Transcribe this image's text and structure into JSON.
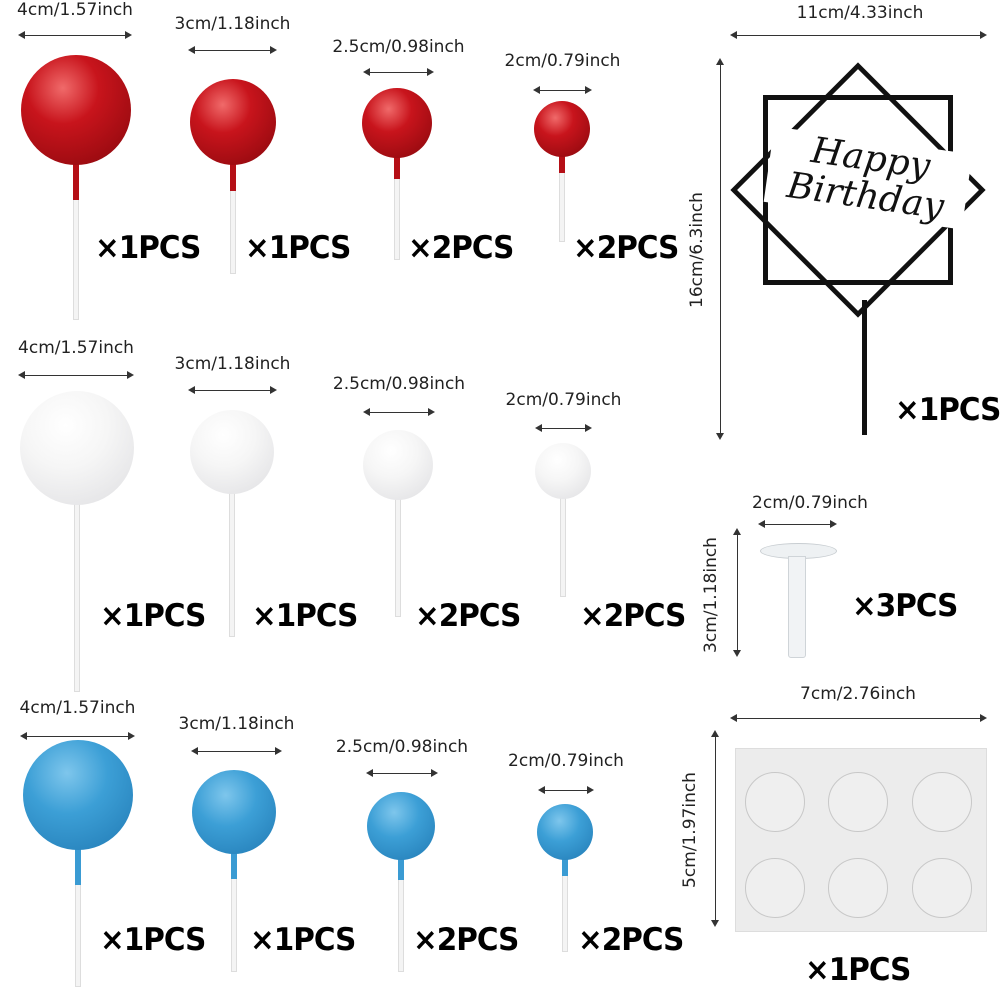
{
  "rows": [
    {
      "color": "red",
      "sizes": [
        "4cm/1.57inch",
        "3cm/1.18inch",
        "2.5cm/0.98inch",
        "2cm/0.79inch"
      ],
      "quantities": [
        "×1PCS",
        "×1PCS",
        "×2PCS",
        "×2PCS"
      ]
    },
    {
      "color": "white",
      "sizes": [
        "4cm/1.57inch",
        "3cm/1.18inch",
        "2.5cm/0.98inch",
        "2cm/0.79inch"
      ],
      "quantities": [
        "×1PCS",
        "×1PCS",
        "×2PCS",
        "×2PCS"
      ]
    },
    {
      "color": "blue",
      "sizes": [
        "4cm/1.57inch",
        "3cm/1.18inch",
        "2.5cm/0.98inch",
        "2cm/0.79inch"
      ],
      "quantities": [
        "×1PCS",
        "×1PCS",
        "×2PCS",
        "×2PCS"
      ]
    }
  ],
  "topper": {
    "text": "Happy Birthday",
    "width": "11cm/4.33inch",
    "height": "16cm/6.3inch",
    "quantity": "×1PCS"
  },
  "stand": {
    "width": "2cm/0.79inch",
    "height": "3cm/1.18inch",
    "quantity": "×3PCS"
  },
  "glue_dots": {
    "width": "7cm/2.76inch",
    "height": "5cm/1.97inch",
    "quantity": "×1PCS"
  },
  "colors": {
    "red": "#b50f16",
    "white": "#f2f2f2",
    "blue": "#3a9bd3"
  }
}
